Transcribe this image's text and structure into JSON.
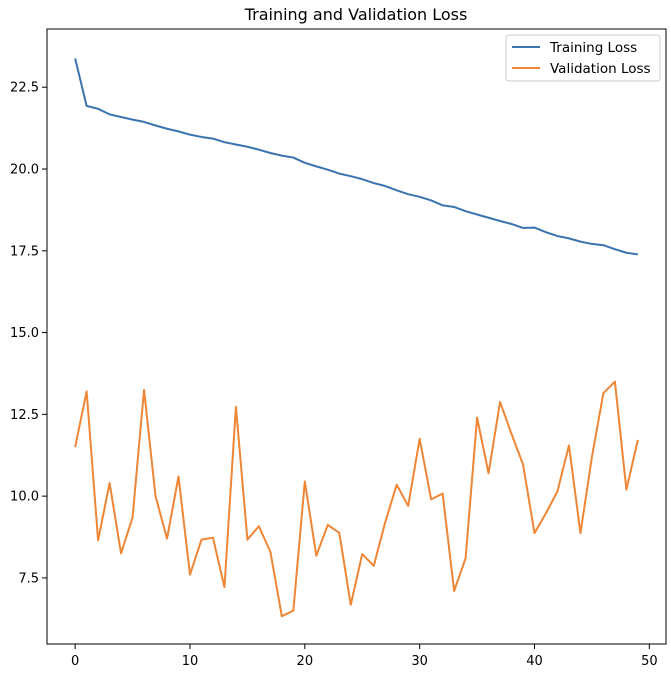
{
  "chart_data": {
    "type": "line",
    "title": "Training and Validation Loss",
    "xlabel": "",
    "ylabel": "",
    "xlim": [
      -2.45,
      51.45
    ],
    "ylim": [
      5.48,
      24.28
    ],
    "xticks": [
      0,
      10,
      20,
      30,
      40,
      50
    ],
    "yticks": [
      7.5,
      10.0,
      12.5,
      15.0,
      17.5,
      20.0,
      22.5
    ],
    "ytick_labels": [
      "7.5",
      "10.0",
      "12.5",
      "15.0",
      "17.5",
      "20.0",
      "22.5"
    ],
    "xtick_labels": [
      "0",
      "10",
      "20",
      "30",
      "40",
      "50"
    ],
    "grid": false,
    "legend_position": "top-right",
    "x": [
      0,
      1,
      2,
      3,
      4,
      5,
      6,
      7,
      8,
      9,
      10,
      11,
      12,
      13,
      14,
      15,
      16,
      17,
      18,
      19,
      20,
      21,
      22,
      23,
      24,
      25,
      26,
      27,
      28,
      29,
      30,
      31,
      32,
      33,
      34,
      35,
      36,
      37,
      38,
      39,
      40,
      41,
      42,
      43,
      44,
      45,
      46,
      47,
      48,
      49
    ],
    "series": [
      {
        "name": "Training Loss",
        "color": "#3a74b0",
        "values": [
          23.38,
          21.93,
          21.84,
          21.67,
          21.59,
          21.51,
          21.44,
          21.33,
          21.23,
          21.15,
          21.05,
          20.98,
          20.93,
          20.82,
          20.75,
          20.68,
          20.59,
          20.49,
          20.41,
          20.35,
          20.19,
          20.08,
          19.98,
          19.86,
          19.78,
          19.69,
          19.57,
          19.48,
          19.35,
          19.23,
          19.15,
          19.04,
          18.89,
          18.84,
          18.71,
          18.61,
          18.51,
          18.41,
          18.32,
          18.2,
          18.21,
          18.07,
          17.95,
          17.88,
          17.78,
          17.71,
          17.67,
          17.55,
          17.44,
          17.39
        ]
      },
      {
        "name": "Validation Loss",
        "color": "#ef8636",
        "values": [
          11.5,
          13.2,
          8.65,
          10.4,
          8.25,
          9.35,
          13.25,
          10.0,
          8.7,
          10.6,
          7.6,
          8.67,
          8.73,
          7.22,
          12.73,
          8.67,
          9.08,
          8.3,
          6.33,
          6.5,
          10.45,
          8.18,
          9.12,
          8.88,
          6.68,
          8.23,
          7.87,
          9.2,
          10.35,
          9.7,
          11.75,
          9.9,
          10.08,
          7.1,
          8.1,
          12.4,
          10.7,
          12.88,
          11.9,
          10.97,
          8.87,
          9.48,
          10.15,
          11.55,
          8.87,
          11.2,
          13.15,
          13.5,
          10.2,
          11.72
        ]
      }
    ]
  }
}
